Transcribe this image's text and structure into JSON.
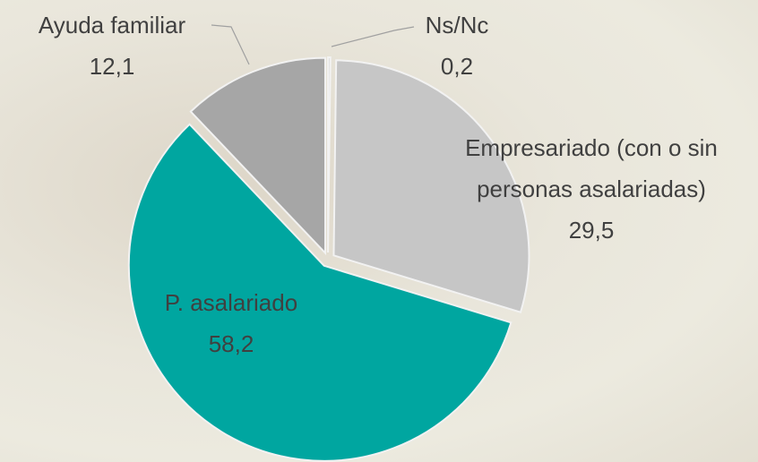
{
  "chart_data": {
    "type": "pie",
    "categories": [
      "Ns/Nc",
      "Empresariado (con o sin personas asalariadas)",
      "P. asalariado",
      "Ayuda familiar"
    ],
    "values": [
      0.2,
      29.5,
      58.2,
      12.1
    ],
    "value_labels": [
      "0,2",
      "29,5",
      "58,2",
      "12,1"
    ],
    "colors": [
      "#d9d9d9",
      "#c6c6c6",
      "#00a6a0",
      "#a6a6a6"
    ]
  }
}
